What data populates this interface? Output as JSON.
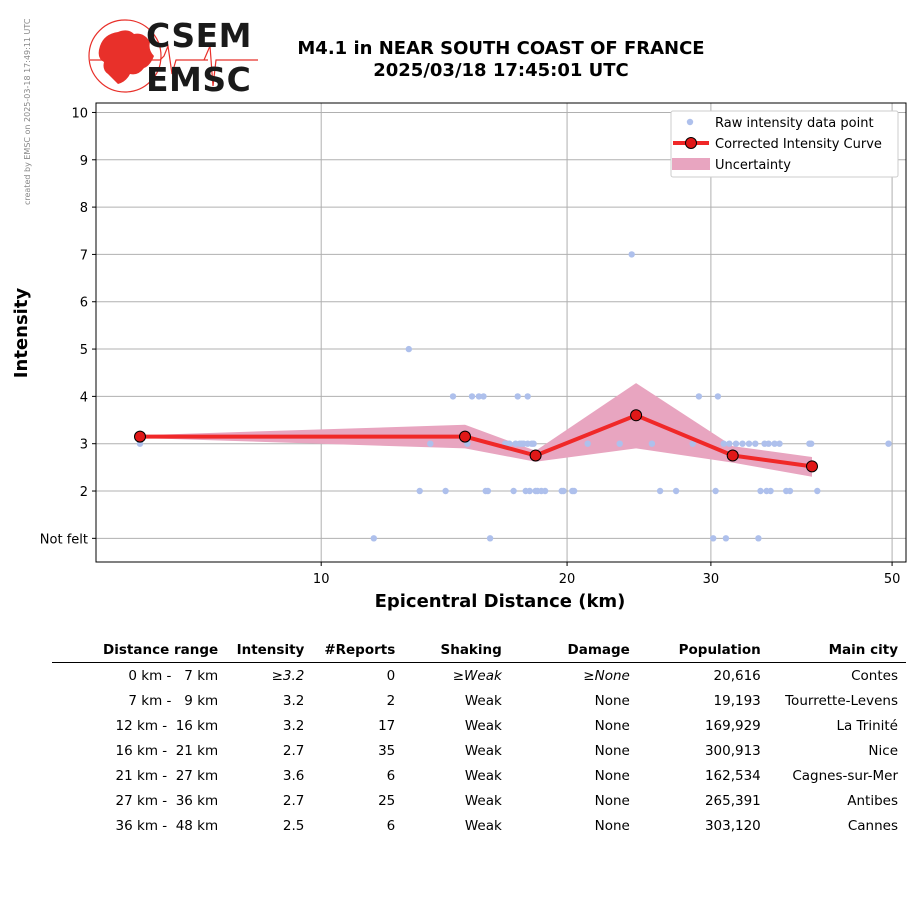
{
  "watermark": "created by EMSC on 2025-03-18 17:49:11 UTC",
  "logo": {
    "line1": "CSEM",
    "line2": "EMSC"
  },
  "title": {
    "line1": "M4.1 in NEAR SOUTH COAST OF FRANCE",
    "line2": "2025/03/18 17:45:01 UTC"
  },
  "colors": {
    "raw": "#aec0ec",
    "curve": "#f02828",
    "marker": "#e01818",
    "band": "#e8a5c0",
    "grid": "#b0b0b0",
    "logo_red": "#e8302a"
  },
  "chart_data": {
    "type": "scatter",
    "xlabel": "Epicentral Distance (km)",
    "ylabel": "Intensity",
    "x_scale": "log",
    "xlim": [
      5.3,
      52
    ],
    "ylim": [
      0.5,
      10.2
    ],
    "x_ticks": [
      10,
      20,
      30,
      50
    ],
    "y_ticks": [
      {
        "v": 1,
        "label": "Not felt"
      },
      {
        "v": 2,
        "label": "2"
      },
      {
        "v": 3,
        "label": "3"
      },
      {
        "v": 4,
        "label": "4"
      },
      {
        "v": 5,
        "label": "5"
      },
      {
        "v": 6,
        "label": "6"
      },
      {
        "v": 7,
        "label": "7"
      },
      {
        "v": 8,
        "label": "8"
      },
      {
        "v": 9,
        "label": "9"
      },
      {
        "v": 10,
        "label": "10"
      }
    ],
    "grid": true,
    "legend_position": "top-right",
    "legend": [
      "Raw intensity data point",
      "Corrected Intensity Curve",
      "Uncertainty"
    ],
    "raw_points": [
      [
        6.0,
        3
      ],
      [
        11.6,
        1
      ],
      [
        12.8,
        5
      ],
      [
        13.2,
        2
      ],
      [
        13.6,
        3
      ],
      [
        14.2,
        2
      ],
      [
        14.5,
        4
      ],
      [
        15.1,
        3
      ],
      [
        15.3,
        4
      ],
      [
        15.6,
        4
      ],
      [
        15.8,
        4
      ],
      [
        15.9,
        2
      ],
      [
        16.0,
        2
      ],
      [
        16.1,
        1
      ],
      [
        16.8,
        3
      ],
      [
        17.0,
        3
      ],
      [
        17.2,
        2
      ],
      [
        17.3,
        3
      ],
      [
        17.4,
        4
      ],
      [
        17.5,
        3
      ],
      [
        17.6,
        3
      ],
      [
        17.7,
        3
      ],
      [
        17.8,
        2
      ],
      [
        17.9,
        3
      ],
      [
        17.9,
        4
      ],
      [
        18.0,
        2
      ],
      [
        18.1,
        3
      ],
      [
        18.2,
        3
      ],
      [
        18.3,
        2
      ],
      [
        18.4,
        2
      ],
      [
        18.6,
        2
      ],
      [
        18.8,
        2
      ],
      [
        19.7,
        2
      ],
      [
        19.8,
        2
      ],
      [
        20.3,
        2
      ],
      [
        20.4,
        2
      ],
      [
        21.2,
        3
      ],
      [
        23.2,
        3
      ],
      [
        24.0,
        7
      ],
      [
        25.4,
        3
      ],
      [
        26.0,
        2
      ],
      [
        27.2,
        2
      ],
      [
        28.5,
        3
      ],
      [
        29.0,
        4
      ],
      [
        30.2,
        1
      ],
      [
        30.4,
        2
      ],
      [
        30.6,
        4
      ],
      [
        31.1,
        3
      ],
      [
        31.3,
        1
      ],
      [
        31.6,
        3
      ],
      [
        32.2,
        3
      ],
      [
        32.8,
        3
      ],
      [
        33.4,
        3
      ],
      [
        34.0,
        3
      ],
      [
        34.3,
        1
      ],
      [
        34.5,
        2
      ],
      [
        34.9,
        3
      ],
      [
        35.1,
        2
      ],
      [
        35.3,
        3
      ],
      [
        35.5,
        2
      ],
      [
        35.9,
        3
      ],
      [
        36.4,
        3
      ],
      [
        37.1,
        2
      ],
      [
        37.5,
        2
      ],
      [
        39.6,
        3
      ],
      [
        39.8,
        3
      ],
      [
        40.5,
        2
      ],
      [
        49.5,
        3
      ]
    ],
    "curve": {
      "x": [
        6.0,
        15.0,
        18.3,
        24.3,
        31.9,
        39.9
      ],
      "y": [
        3.15,
        3.15,
        2.75,
        3.6,
        2.75,
        2.52
      ]
    },
    "uncertainty": {
      "x": [
        6.0,
        15.0,
        18.3,
        24.3,
        31.9,
        39.9
      ],
      "lower": [
        3.12,
        2.9,
        2.62,
        2.9,
        2.6,
        2.3
      ],
      "upper": [
        3.18,
        3.4,
        2.85,
        4.28,
        2.95,
        2.72
      ]
    }
  },
  "table": {
    "headers": [
      "Distance range",
      "Intensity",
      "#Reports",
      "Shaking",
      "Damage",
      "Population",
      "Main city"
    ],
    "rows": [
      {
        "range": "0 km -   7 km",
        "intensity": "≥3.2",
        "reports": "0",
        "shaking": "≥Weak",
        "damage": "≥None",
        "population": "20,616",
        "city": "Contes"
      },
      {
        "range": "7 km -   9 km",
        "intensity": "3.2",
        "reports": "2",
        "shaking": "Weak",
        "damage": "None",
        "population": "19,193",
        "city": "Tourrette-Levens"
      },
      {
        "range": "12 km -  16 km",
        "intensity": "3.2",
        "reports": "17",
        "shaking": "Weak",
        "damage": "None",
        "population": "169,929",
        "city": "La Trinité"
      },
      {
        "range": "16 km -  21 km",
        "intensity": "2.7",
        "reports": "35",
        "shaking": "Weak",
        "damage": "None",
        "population": "300,913",
        "city": "Nice"
      },
      {
        "range": "21 km -  27 km",
        "intensity": "3.6",
        "reports": "6",
        "shaking": "Weak",
        "damage": "None",
        "population": "162,534",
        "city": "Cagnes-sur-Mer"
      },
      {
        "range": "27 km -  36 km",
        "intensity": "2.7",
        "reports": "25",
        "shaking": "Weak",
        "damage": "None",
        "population": "265,391",
        "city": "Antibes"
      },
      {
        "range": "36 km -  48 km",
        "intensity": "2.5",
        "reports": "6",
        "shaking": "Weak",
        "damage": "None",
        "population": "303,120",
        "city": "Cannes"
      }
    ]
  }
}
